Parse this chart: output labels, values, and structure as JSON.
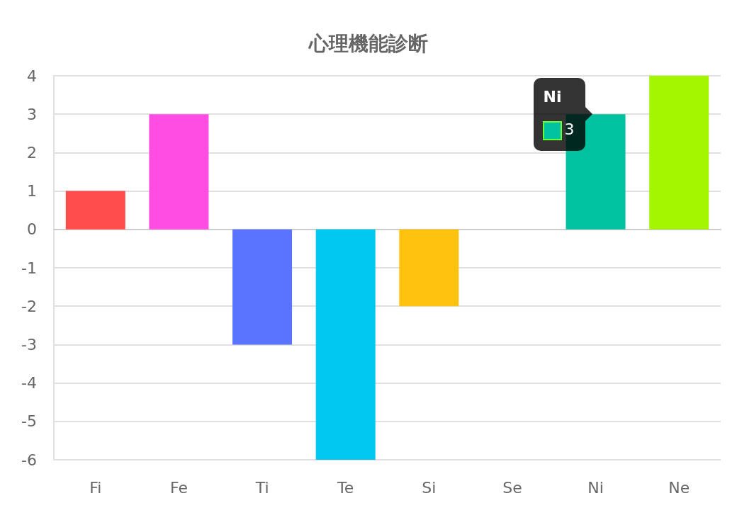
{
  "chart_data": {
    "type": "bar",
    "title": "心理機能診断",
    "categories": [
      "Fi",
      "Fe",
      "Ti",
      "Te",
      "Si",
      "Se",
      "Ni",
      "Ne"
    ],
    "values": [
      1,
      3,
      -3,
      -6,
      -2,
      0,
      3,
      4
    ],
    "colors": [
      "#ff4c4c",
      "#ff4de3",
      "#5b74ff",
      "#00c8f0",
      "#ffc20e",
      "#cccccc",
      "#00c2a0",
      "#a3f500"
    ],
    "value_labels": [
      null,
      null,
      null,
      null,
      null,
      null,
      "3",
      null
    ],
    "ylim": [
      -6,
      4
    ],
    "yticks": [
      -6,
      -5,
      -4,
      -3,
      -2,
      -1,
      0,
      1,
      2,
      3,
      4
    ],
    "grid": "y",
    "annotations": [
      {
        "text": "Ni",
        "x": "Ni",
        "y": 3
      }
    ]
  }
}
